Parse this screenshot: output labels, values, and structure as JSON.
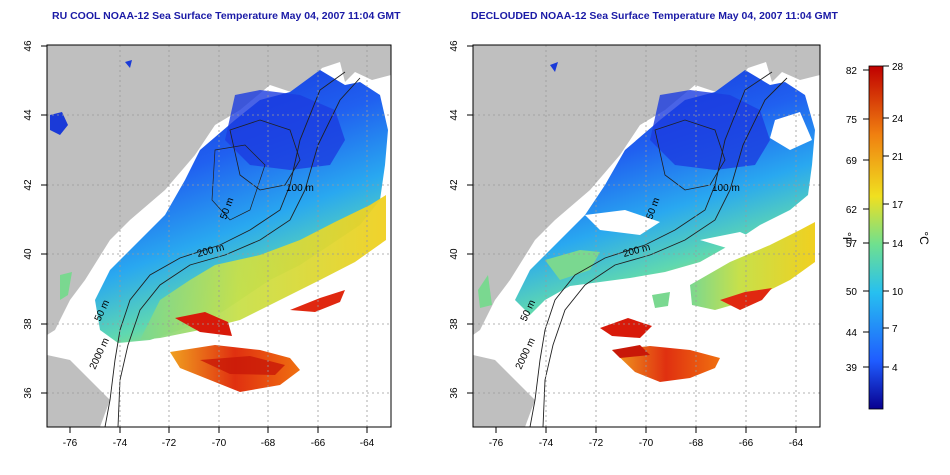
{
  "panels": [
    {
      "title": "RU COOL NOAA-12 Sea Surface Temperature May 04, 2007 11:04 GMT",
      "contour_labels": [
        "100 m",
        "50 m",
        "200 m",
        "50 m",
        "2000 m"
      ],
      "clouds_removed": false
    },
    {
      "title": "DECLOUDED NOAA-12 Sea Surface Temperature May 04, 2007 11:04 GMT",
      "contour_labels": [
        "100 m",
        "50 m",
        "200 m",
        "50 m",
        "2000 m"
      ],
      "clouds_removed": true
    }
  ],
  "axes": {
    "x_ticks": [
      "-76",
      "-74",
      "-72",
      "-70",
      "-68",
      "-66",
      "-64"
    ],
    "y_ticks": [
      "36",
      "38",
      "40",
      "42",
      "44",
      "46"
    ],
    "x_range": [
      -77,
      -63
    ],
    "y_range": [
      35,
      46
    ],
    "grid": "dotted"
  },
  "colorbar": {
    "fahrenheit_label": "°F",
    "celsius_label": "°C",
    "fahrenheit_ticks": [
      "82",
      "75",
      "69",
      "62",
      "57",
      "50",
      "44",
      "39"
    ],
    "celsius_ticks": [
      "28",
      "24",
      "21",
      "17",
      "14",
      "10",
      "7",
      "4"
    ],
    "colors": {
      "cold": "#08008f",
      "cool": "#1f5cff",
      "mild": "#27c0f0",
      "mid": "#6fe08f",
      "warm": "#f0e020",
      "hot": "#f08010",
      "hottest": "#c00000"
    }
  },
  "map_colors": {
    "land": "#bfbfbf",
    "no_data": "#ffffff"
  }
}
